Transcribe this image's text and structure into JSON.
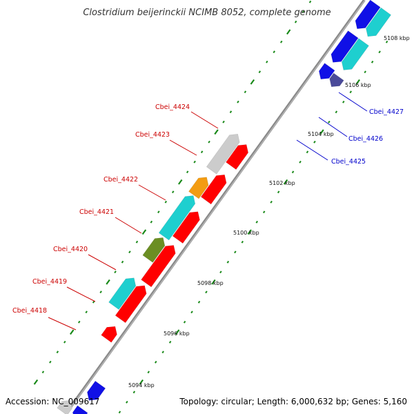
{
  "title": "Clostridium beijerinckii NCIMB 8052, complete genome",
  "footer": {
    "accession": "Accession: NC_009617",
    "topology": "Topology: circular; Length: 6,000,632 bp; Genes: 5,160"
  },
  "colors": {
    "backbone": "#888888",
    "tick": "#1a8a1a",
    "forward_label": "#cc0000",
    "reverse_label": "#0000cc",
    "red": "#ff0000",
    "cyan": "#1ecfcf",
    "gray": "#cccccc",
    "orange": "#f39c12",
    "olive": "#6b8e23",
    "blue": "#1010e6",
    "navy": "#4a4a99",
    "green": "#44cc22"
  },
  "kbp_labels": [
    "5094 kbp",
    "5096 kbp",
    "5098 kbp",
    "5100 kbp",
    "5102 kbp",
    "5104 kbp",
    "5106 kbp",
    "5108 kbp"
  ],
  "forward_genes": [
    "Cbei_4418",
    "Cbei_4419",
    "Cbei_4420",
    "Cbei_4421",
    "Cbei_4422",
    "Cbei_4423",
    "Cbei_4424"
  ],
  "reverse_genes": [
    "Cbei_4425",
    "Cbei_4426",
    "Cbei_4427"
  ]
}
